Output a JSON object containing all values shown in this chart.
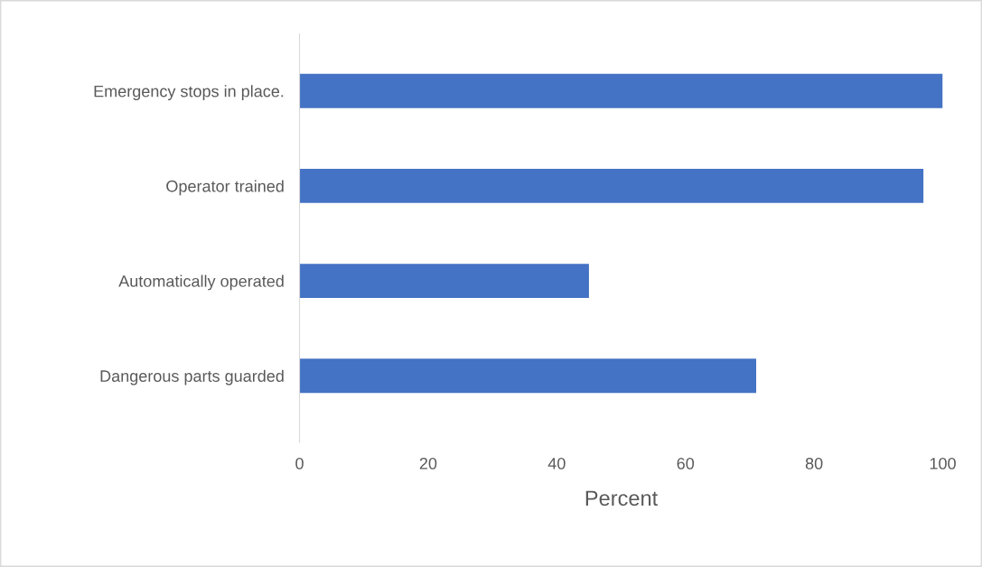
{
  "chart_data": {
    "type": "bar",
    "orientation": "horizontal",
    "xlabel": "Percent",
    "categories": [
      "Emergency stops in place.",
      "Operator trained",
      "Automatically operated",
      "Dangerous parts guarded"
    ],
    "values": [
      100,
      97,
      45,
      71
    ],
    "color": "#4472c4",
    "xlim": [
      0,
      100
    ],
    "xticks": [
      0,
      20,
      40,
      60,
      80,
      100
    ],
    "grid": false,
    "legend": false
  }
}
